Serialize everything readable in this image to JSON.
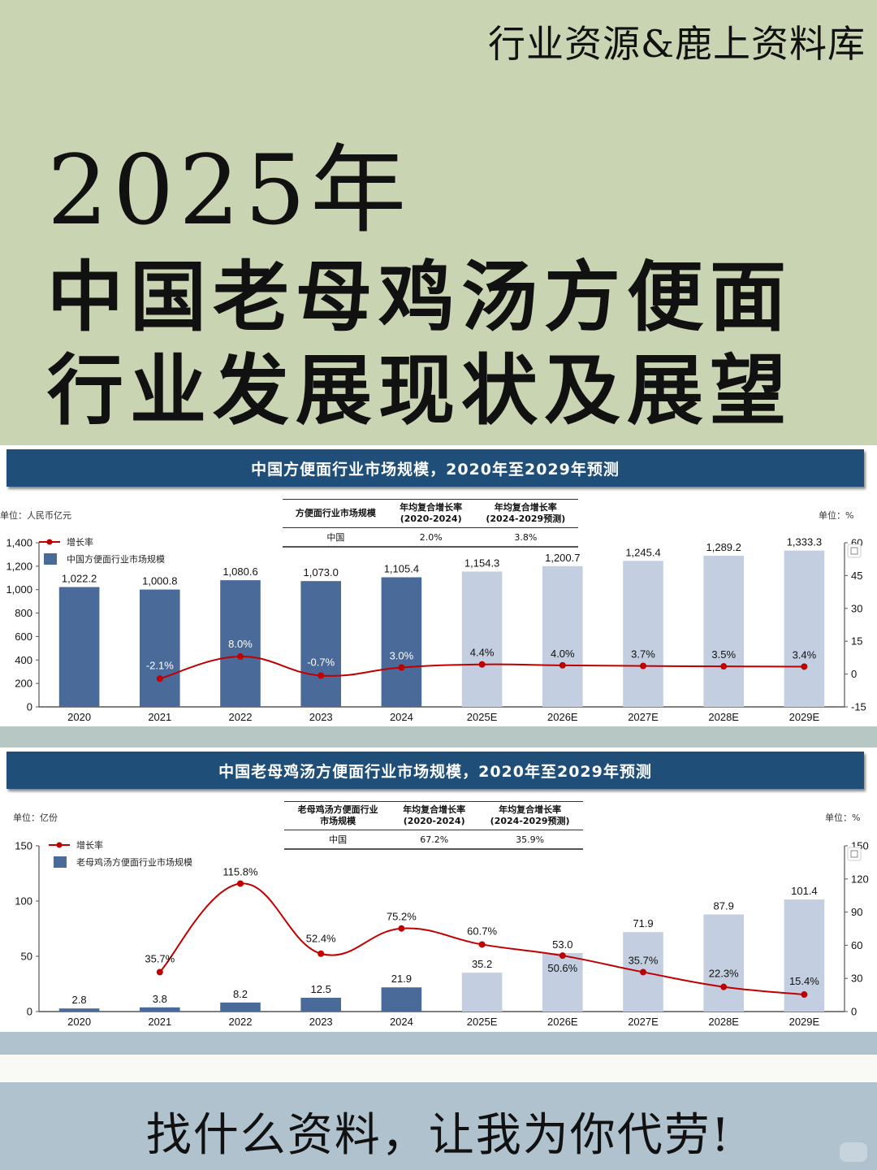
{
  "brand": "行业资源&鹿上资料库",
  "title_year": "2025年",
  "title_line1": "中国老母鸡汤方便面",
  "title_line2": "行业发展现状及展望",
  "footer_text": "找什么资料，让我为你代劳!",
  "colors": {
    "background_top": "#c8d4b2",
    "header_blue": "#1f4e79",
    "bar_actual": "#4a6a9a",
    "bar_forecast": "#c3cfe0",
    "line_red": "#c00000",
    "footer_bg": "#b1c2cf"
  },
  "chart1": {
    "header": "中国方便面行业市场规模，2020年至2029年预测",
    "unit_left": "单位：人民币亿元",
    "unit_right": "单位：%",
    "legend_line": "增长率",
    "legend_bar": "中国方便面行业市场规模",
    "table": {
      "col1": "方便面行业市场规模",
      "col2_l1": "年均复合增长率",
      "col2_l2": "(2020-2024)",
      "col3_l1": "年均复合增长率",
      "col3_l2": "(2024-2029预测)",
      "row_label": "中国",
      "row_v1": "2.0%",
      "row_v2": "3.8%"
    }
  },
  "chart2": {
    "header": "中国老母鸡汤方便面行业市场规模，2020年至2029年预测",
    "unit_left": "单位：亿份",
    "unit_right": "单位：%",
    "legend_line": "增长率",
    "legend_bar": "老母鸡汤方便面行业市场规模",
    "table": {
      "col1_l1": "老母鸡汤方便面行业",
      "col1_l2": "市场规模",
      "col2_l1": "年均复合增长率",
      "col2_l2": "(2020-2024)",
      "col3_l1": "年均复合增长率",
      "col3_l2": "(2024-2029预测)",
      "row_label": "中国",
      "row_v1": "67.2%",
      "row_v2": "35.9%"
    }
  },
  "chart_data": [
    {
      "type": "bar",
      "title": "中国方便面行业市场规模，2020年至2029年预测",
      "categories": [
        "2020",
        "2021",
        "2022",
        "2023",
        "2024",
        "2025E",
        "2026E",
        "2027E",
        "2028E",
        "2029E"
      ],
      "series": [
        {
          "name": "中国方便面行业市场规模",
          "type": "bar",
          "axis": "left",
          "values": [
            1022.2,
            1000.8,
            1080.6,
            1073.0,
            1105.4,
            1154.3,
            1200.7,
            1245.4,
            1289.2,
            1333.3
          ],
          "labels": [
            "1,022.2",
            "1,000.8",
            "1,080.6",
            "1,073.0",
            "1,105.4",
            "1,154.3",
            "1,200.7",
            "1,245.4",
            "1,289.2",
            "1,333.3"
          ]
        },
        {
          "name": "增长率",
          "type": "line",
          "axis": "right",
          "values": [
            null,
            -2.1,
            8.0,
            -0.7,
            3.0,
            4.4,
            4.0,
            3.7,
            3.5,
            3.4
          ],
          "labels": [
            "",
            "-2.1%",
            "8.0%",
            "-0.7%",
            "3.0%",
            "4.4%",
            "4.0%",
            "3.7%",
            "3.5%",
            "3.4%"
          ]
        }
      ],
      "ylabel": "人民币亿元",
      "ylim": [
        0,
        1400
      ],
      "yticks": [
        "0",
        "200",
        "400",
        "600",
        "800",
        "1,000",
        "1,200",
        "1,400"
      ],
      "y2label": "%",
      "y2lim": [
        -15,
        60
      ],
      "y2ticks": [
        "-15",
        "0",
        "15",
        "30",
        "45",
        "60"
      ],
      "forecast_start_index": 5,
      "legend_position": "top-left",
      "grid": false
    },
    {
      "type": "bar",
      "title": "中国老母鸡汤方便面行业市场规模，2020年至2029年预测",
      "categories": [
        "2020",
        "2021",
        "2022",
        "2023",
        "2024",
        "2025E",
        "2026E",
        "2027E",
        "2028E",
        "2029E"
      ],
      "series": [
        {
          "name": "老母鸡汤方便面行业市场规模",
          "type": "bar",
          "axis": "left",
          "values": [
            2.8,
            3.8,
            8.2,
            12.5,
            21.9,
            35.2,
            53.0,
            71.9,
            87.9,
            101.4
          ],
          "labels": [
            "2.8",
            "3.8",
            "8.2",
            "12.5",
            "21.9",
            "35.2",
            "53.0",
            "71.9",
            "87.9",
            "101.4"
          ]
        },
        {
          "name": "增长率",
          "type": "line",
          "axis": "right",
          "values": [
            null,
            35.7,
            115.8,
            52.4,
            75.2,
            60.7,
            50.6,
            35.7,
            22.3,
            15.4
          ],
          "labels": [
            "",
            "35.7%",
            "115.8%",
            "52.4%",
            "75.2%",
            "60.7%",
            "50.6%",
            "35.7%",
            "22.3%",
            "15.4%"
          ]
        }
      ],
      "ylabel": "亿份",
      "ylim": [
        0,
        150
      ],
      "yticks": [
        "0",
        "50",
        "100",
        "150"
      ],
      "y2label": "%",
      "y2lim": [
        0,
        150
      ],
      "y2ticks": [
        "0",
        "30",
        "60",
        "90",
        "120",
        "150"
      ],
      "forecast_start_index": 5,
      "legend_position": "top-left",
      "grid": false
    }
  ]
}
